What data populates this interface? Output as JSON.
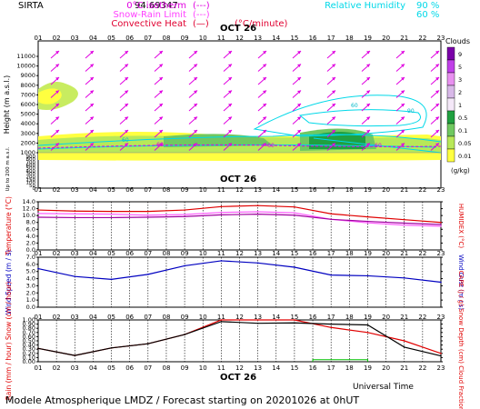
{
  "header": {
    "site": "SIRTA",
    "site_code": "94.69347",
    "legend_left": [
      {
        "label": "0°C isotherm",
        "sample": "(---)",
        "color": "#e000e0"
      },
      {
        "label": "Snow-Rain Limit",
        "sample": "(---)",
        "color": "#ff40ff"
      },
      {
        "label": "Convective Heat",
        "sample": "(—)",
        "unit": "(°C/minute)",
        "color": "#e00030"
      }
    ],
    "legend_right": [
      {
        "label": "Relative Humidity",
        "value": "90 %",
        "color": "#00d8e8"
      },
      {
        "label": "",
        "value": "60 %",
        "color": "#00d8e8"
      }
    ]
  },
  "footer": {
    "text": "Modele Atmospherique LMDZ / Forecast starting on 20201026 at 0hUT",
    "universal_time": "Universal Time"
  },
  "chart_data": [
    {
      "type": "heatmap",
      "date_label": "OCT 26",
      "hours": [
        "01",
        "02",
        "03",
        "04",
        "05",
        "06",
        "07",
        "08",
        "09",
        "10",
        "11",
        "12",
        "13",
        "14",
        "15",
        "16",
        "17",
        "18",
        "19",
        "20",
        "21",
        "22",
        "23"
      ],
      "ylabel": "Height (m a.s.l.)",
      "ylabel_low": "Up to 200 m a.s.l.",
      "yticks_upper": [
        "11000",
        "10000",
        "9000",
        "8000",
        "7000",
        "6000",
        "5000",
        "4000",
        "3000",
        "2000",
        "1000"
      ],
      "yticks_lower": [
        "900",
        "800",
        "700",
        "600",
        "500",
        "400",
        "300",
        "200",
        "150",
        "100",
        "50",
        "0"
      ],
      "clouds_title": "Clouds",
      "clouds_unit": "(g/kg)",
      "cloud_scale": [
        "9",
        "5",
        "3",
        "2",
        "1",
        "0.5",
        "0.1",
        "0.05",
        "0.01"
      ],
      "cloud_colors": [
        "#7a00a8",
        "#c040e8",
        "#e890f0",
        "#d8b8e8",
        "#f4e8f8",
        "#20a040",
        "#70c860",
        "#b8e858",
        "#ffff40"
      ],
      "rh_labels": [
        "60",
        "60",
        "90"
      ],
      "isotherm_labels": [
        "-60",
        "-60",
        "-60"
      ]
    },
    {
      "type": "line",
      "date_label": "OCT 26",
      "ylabel_left": "Temperature (°C)",
      "ylabel_right": "HUMIDEX (°C)",
      "yticks": [
        "14.0",
        "12.0",
        "10.0",
        "8.0",
        "6.0",
        "4.0",
        "2.0",
        "0.0"
      ],
      "ylim": [
        0,
        14
      ],
      "x": [
        1,
        3,
        5,
        7,
        9,
        11,
        13,
        15,
        17,
        19,
        21,
        23
      ],
      "series": [
        {
          "values": [
            11.6,
            11.3,
            11.2,
            11.2,
            11.6,
            12.6,
            12.9,
            12.5,
            10.5,
            9.6,
            8.8,
            8.0
          ],
          "color": "#e00000"
        },
        {
          "values": [
            10.6,
            10.5,
            10.4,
            10.1,
            10.3,
            10.9,
            11.1,
            10.8,
            8.9,
            7.9,
            7.2,
            6.9
          ],
          "color": "#ff60ff"
        },
        {
          "values": [
            9.5,
            9.4,
            9.4,
            9.5,
            9.7,
            10.2,
            10.4,
            10.1,
            8.9,
            8.3,
            7.8,
            7.4
          ],
          "color": "#a000a0"
        }
      ]
    },
    {
      "type": "line",
      "date_label": "OCT 26",
      "ylabel_left": "Wind Speed (m / s)",
      "ylabel_right": "Wind Gust (m / s)",
      "yticks": [
        "7.0",
        "6.0",
        "5.0",
        "4.0",
        "3.0",
        "2.0",
        "1.0",
        "0.0"
      ],
      "ylim": [
        0,
        7
      ],
      "x": [
        1,
        3,
        5,
        7,
        9,
        11,
        13,
        15,
        17,
        19,
        21,
        23
      ],
      "series": [
        {
          "values": [
            5.4,
            4.3,
            3.9,
            4.6,
            5.8,
            6.5,
            6.2,
            5.6,
            4.5,
            4.4,
            4.1,
            3.5
          ],
          "color": "#0000c0"
        }
      ]
    },
    {
      "type": "line",
      "date_label": "OCT 26",
      "ylabel_left": "Rain (mm / hour) Snow (cm / hour)",
      "ylabel_right": "CAPE (J / g) Snow Depth (cm) Cloud Fraction",
      "yticks": [
        "1.00",
        "0.90",
        "0.80",
        "0.70",
        "0.60",
        "0.50",
        "0.40",
        "0.30",
        "0.20",
        "0.10",
        "0.00"
      ],
      "ylim": [
        0,
        1
      ],
      "x": [
        1,
        3,
        5,
        7,
        9,
        11,
        13,
        15,
        17,
        19,
        21,
        23
      ],
      "series": [
        {
          "values": [
            0.32,
            0.15,
            0.33,
            0.43,
            0.65,
            1.0,
            1.0,
            1.0,
            0.82,
            0.7,
            0.5,
            0.2
          ],
          "color": "#e00000"
        },
        {
          "values": [
            0.32,
            0.15,
            0.33,
            0.43,
            0.65,
            0.96,
            0.92,
            0.93,
            0.9,
            0.88,
            0.35,
            0.14
          ],
          "color": "#000000"
        }
      ],
      "green_segment": {
        "from": 16,
        "to": 19,
        "value": 0.05,
        "color": "#00c000"
      }
    }
  ]
}
